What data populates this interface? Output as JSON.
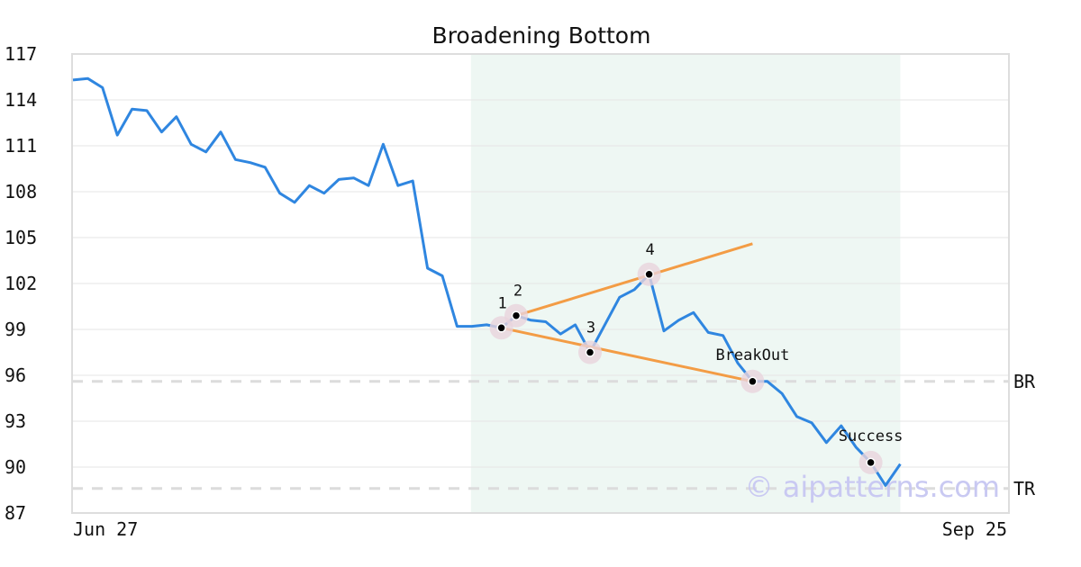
{
  "chart_data": {
    "type": "line",
    "title": "Broadening Bottom",
    "xlabel": "",
    "ylabel": "",
    "ylim": [
      87,
      117
    ],
    "yticks": [
      87,
      90,
      93,
      96,
      99,
      102,
      105,
      108,
      111,
      114,
      117
    ],
    "x_tick_labels": [
      "Jun 27",
      "Sep 25"
    ],
    "grid": true,
    "legend": "none",
    "series": [
      {
        "color": "#2f86e0",
        "values": [
          115.3,
          115.4,
          114.8,
          111.7,
          113.4,
          113.3,
          111.9,
          112.9,
          111.1,
          110.6,
          111.9,
          110.1,
          109.9,
          109.6,
          107.9,
          107.3,
          108.4,
          107.9,
          108.8,
          108.9,
          108.4,
          111.1,
          108.4,
          108.7,
          103.0,
          102.5,
          99.2,
          99.2,
          99.3,
          99.1,
          99.9,
          99.6,
          99.5,
          98.7,
          99.3,
          97.5,
          99.3,
          101.1,
          101.6,
          102.6,
          98.9,
          99.6,
          100.1,
          98.8,
          98.6,
          96.8,
          95.6,
          95.6,
          94.8,
          93.3,
          92.9,
          91.6,
          92.7,
          91.3,
          90.3,
          88.8,
          90.2
        ]
      }
    ],
    "highlight_band": {
      "start_index": 27,
      "end_index": 56,
      "color": "#eef7f3"
    },
    "pattern_points": [
      {
        "label": "1",
        "index": 29,
        "value": 99.1
      },
      {
        "label": "2",
        "index": 30,
        "value": 99.9
      },
      {
        "label": "3",
        "index": 35,
        "value": 97.5
      },
      {
        "label": "4",
        "index": 39,
        "value": 102.6
      },
      {
        "label": "BreakOut",
        "index": 46,
        "value": 95.6
      },
      {
        "label": "Success",
        "index": 54,
        "value": 90.3
      }
    ],
    "trend_lines": [
      {
        "from_index": 29,
        "from_value": 99.1,
        "to_index": 46,
        "to_value": 95.6,
        "color": "#f39c45"
      },
      {
        "from_index": 30,
        "from_value": 99.9,
        "to_index": 46,
        "to_value": 104.6,
        "color": "#f39c45"
      }
    ],
    "reference_lines": [
      {
        "label": "BR",
        "value": 95.6
      },
      {
        "label": "TR",
        "value": 88.6
      }
    ],
    "watermark": "© aipatterns.com"
  }
}
